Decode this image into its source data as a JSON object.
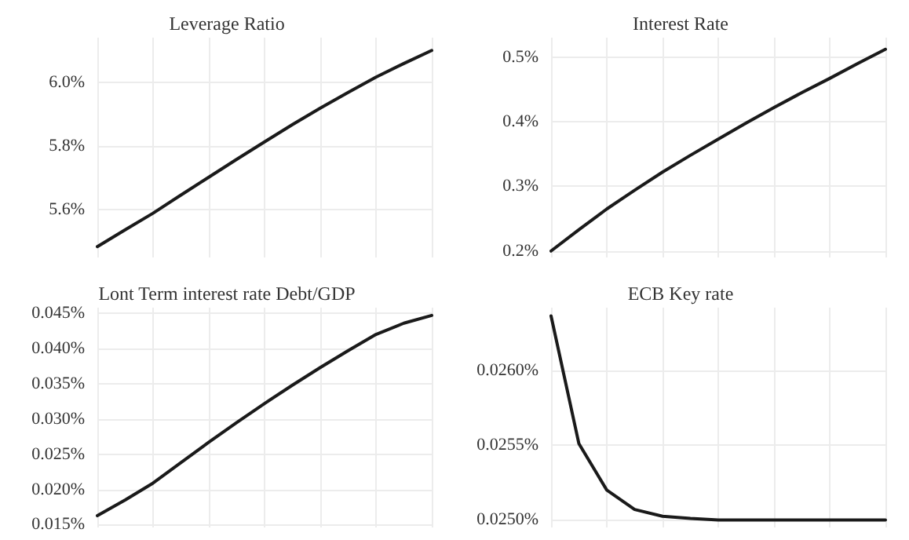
{
  "chart_data": [
    {
      "type": "line",
      "title": "Leverage Ratio",
      "categories": [
        null,
        null,
        null,
        null,
        null,
        null,
        null,
        null,
        null,
        null,
        null,
        null,
        null
      ],
      "ylim": [
        5.45,
        6.14
      ],
      "yticks": [
        {
          "value": 5.6,
          "label": "5.6%"
        },
        {
          "value": 5.8,
          "label": "5.8%"
        },
        {
          "value": 6.0,
          "label": "6.0%"
        }
      ],
      "tick_labels": "y",
      "grid": true,
      "marker": "none",
      "line_style": "solid",
      "series": [
        {
          "color": "#1a1a1a",
          "values": [
            5.484,
            5.537,
            5.589,
            5.646,
            5.702,
            5.758,
            5.813,
            5.867,
            5.919,
            5.968,
            6.016,
            6.059,
            6.1
          ]
        }
      ]
    },
    {
      "type": "line",
      "title": "Interest Rate",
      "categories": [
        null,
        null,
        null,
        null,
        null,
        null,
        null,
        null,
        null,
        null,
        null,
        null,
        null
      ],
      "ylim": [
        0.19,
        0.53
      ],
      "yticks": [
        {
          "value": 0.2,
          "label": "0.2%"
        },
        {
          "value": 0.3,
          "label": "0.3%"
        },
        {
          "value": 0.4,
          "label": "0.4%"
        },
        {
          "value": 0.5,
          "label": "0.5%"
        }
      ],
      "tick_labels": "y",
      "grid": true,
      "marker": "none",
      "line_style": "solid",
      "series": [
        {
          "color": "#1a1a1a",
          "values": [
            0.2,
            0.233,
            0.265,
            0.294,
            0.322,
            0.348,
            0.373,
            0.398,
            0.422,
            0.445,
            0.467,
            0.49,
            0.512
          ]
        }
      ]
    },
    {
      "type": "line",
      "title": "Lont Term interest rate Debt/GDP",
      "categories": [
        null,
        null,
        null,
        null,
        null,
        null,
        null,
        null,
        null,
        null,
        null,
        null,
        null
      ],
      "ylim": [
        0.0146,
        0.0458
      ],
      "yticks": [
        {
          "value": 0.015,
          "label": "0.015%"
        },
        {
          "value": 0.02,
          "label": "0.020%"
        },
        {
          "value": 0.025,
          "label": "0.025%"
        },
        {
          "value": 0.03,
          "label": "0.030%"
        },
        {
          "value": 0.035,
          "label": "0.035%"
        },
        {
          "value": 0.04,
          "label": "0.040%"
        },
        {
          "value": 0.045,
          "label": "0.045%"
        }
      ],
      "tick_labels": "y",
      "grid": true,
      "marker": "none",
      "line_style": "solid",
      "series": [
        {
          "color": "#1a1a1a",
          "values": [
            0.01626,
            0.0185,
            0.0209,
            0.0238,
            0.0267,
            0.0295,
            0.0322,
            0.0348,
            0.0373,
            0.0397,
            0.042,
            0.0436,
            0.0447
          ]
        }
      ]
    },
    {
      "type": "line",
      "title": "ECB Key rate",
      "categories": [
        null,
        null,
        null,
        null,
        null,
        null,
        null,
        null,
        null,
        null,
        null,
        null,
        null
      ],
      "ylim": [
        0.02495,
        0.02642
      ],
      "yticks": [
        {
          "value": 0.025,
          "label": "0.0250%"
        },
        {
          "value": 0.0255,
          "label": "0.0255%"
        },
        {
          "value": 0.026,
          "label": "0.0260%"
        }
      ],
      "tick_labels": "y",
      "grid": true,
      "marker": "none",
      "line_style": "solid",
      "series": [
        {
          "color": "#1a1a1a",
          "values": [
            0.026365,
            0.02551,
            0.0252,
            0.02507,
            0.025025,
            0.02501,
            0.025,
            0.025,
            0.025,
            0.025,
            0.025,
            0.025,
            0.025
          ]
        }
      ]
    }
  ]
}
